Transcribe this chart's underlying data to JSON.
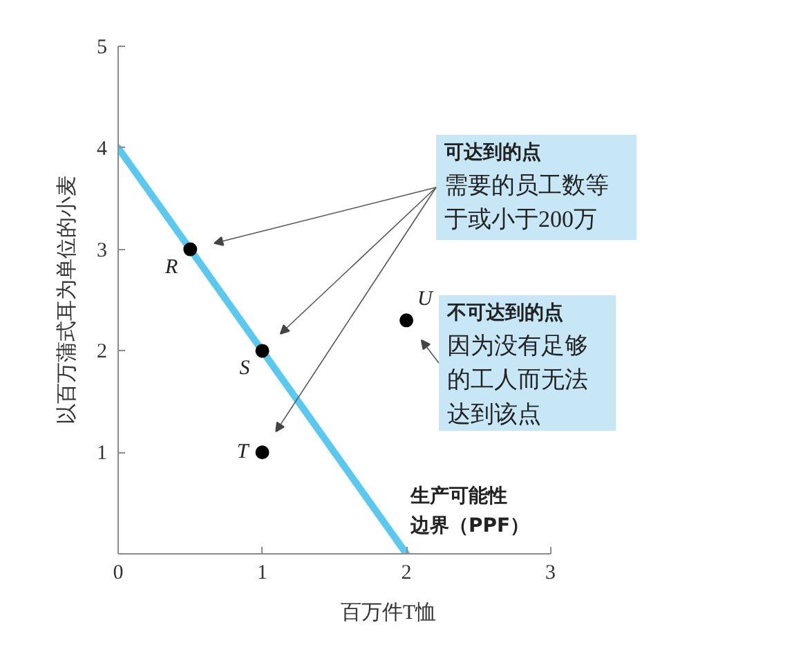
{
  "chart_data": {
    "type": "scatter",
    "xlabel": "百万件T恤",
    "ylabel": "以百万蒲式耳为单位的小麦",
    "xlim": [
      0,
      3
    ],
    "xticks": [
      0,
      1,
      2,
      3
    ],
    "ylim": [
      0,
      5
    ],
    "yticks": [
      1,
      2,
      3,
      4,
      5
    ],
    "grid": false,
    "series": [
      {
        "type": "line",
        "name": "生产可能性边界（PPF）",
        "color": "#5bc8ef",
        "x": [
          0,
          2
        ],
        "values": [
          4,
          0
        ]
      },
      {
        "name": "R",
        "color": "#000000",
        "marker": "circle",
        "x": [
          0.5
        ],
        "values": [
          3
        ]
      },
      {
        "name": "S",
        "color": "#000000",
        "marker": "circle",
        "x": [
          1
        ],
        "values": [
          2
        ]
      },
      {
        "name": "T",
        "color": "#000000",
        "marker": "circle",
        "x": [
          1
        ],
        "values": [
          1
        ]
      },
      {
        "name": "U",
        "color": "#000000",
        "marker": "circle",
        "x": [
          2
        ],
        "values": [
          2.3
        ]
      }
    ],
    "annotations": [
      "可达到的点",
      "需要的员工数等于或小于200万",
      "不可达到的点",
      "因为没有足够的工人而无法达到该点"
    ]
  }
}
